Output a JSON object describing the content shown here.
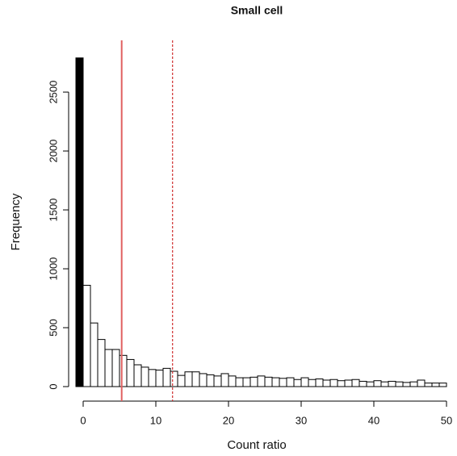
{
  "chart_data": {
    "type": "histogram",
    "title": "Small cell",
    "x_label": "Count ratio",
    "y_label": "Frequency",
    "bins": [
      -1,
      0,
      1,
      2,
      3,
      4,
      5,
      6,
      7,
      8,
      9,
      10,
      11,
      12,
      13,
      14,
      15,
      16,
      17,
      18,
      19,
      20,
      21,
      22,
      23,
      24,
      25,
      26,
      27,
      28,
      29,
      30,
      31,
      32,
      33,
      34,
      35,
      36,
      37,
      38,
      39,
      40,
      41,
      42,
      43,
      44,
      45,
      46,
      47,
      48,
      49,
      50
    ],
    "counts": [
      2790,
      860,
      540,
      400,
      315,
      315,
      265,
      230,
      185,
      165,
      145,
      140,
      155,
      130,
      95,
      125,
      125,
      110,
      100,
      90,
      110,
      90,
      75,
      75,
      80,
      90,
      80,
      75,
      70,
      75,
      60,
      75,
      60,
      65,
      55,
      60,
      50,
      55,
      60,
      45,
      40,
      50,
      40,
      45,
      40,
      35,
      40,
      55,
      30,
      30,
      30
    ],
    "color": "#ffffff",
    "edge_color": "#000000",
    "highlight_bins": [
      0
    ],
    "highlight_color": "#000000",
    "vlines": [
      {
        "x": 5.3,
        "color": "#e06060",
        "style": "solid"
      },
      {
        "x": 12.3,
        "color": "#d03030",
        "style": "dashed"
      }
    ],
    "xlim": [
      -1.2,
      50.5
    ],
    "ylim": [
      0,
      2850
    ],
    "xticks": [
      0,
      10,
      20,
      30,
      40,
      50
    ],
    "yticks": [
      0,
      500,
      1000,
      1500,
      2000,
      2500
    ]
  }
}
